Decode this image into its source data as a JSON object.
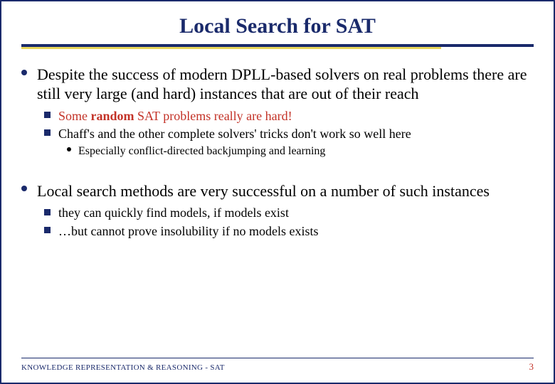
{
  "title": "Local Search for SAT",
  "colors": {
    "title": "#1a2a6b",
    "rule_primary": "#1a2a6b",
    "rule_accent": "#e8d65a",
    "body_text": "#000000",
    "emphasis": "#c33227",
    "footer_text": "#1a2a6b",
    "page_number": "#c33227",
    "background": "#ffffff"
  },
  "typography": {
    "title_fontsize": 30,
    "lvl1_fontsize": 22,
    "lvl2_fontsize": 18,
    "lvl3_fontsize": 16,
    "footer_fontsize": 11,
    "font_family": "Times New Roman"
  },
  "bullets": {
    "p1": "Despite the success of modern DPLL-based solvers on real problems there are still very large (and hard) instances that are out of their reach",
    "p1_s1_a": "Some ",
    "p1_s1_b": "random",
    "p1_s1_c": " SAT problems really are hard!",
    "p1_s2": "Chaff's and the other complete solvers' tricks don't work so well here",
    "p1_s2_i": "Especially conflict-directed backjumping and learning",
    "p2": "Local search methods are very successful on a number of such instances",
    "p2_s1": "they can quickly find models, if models exist",
    "p2_s2": "…but cannot prove insolubility if no models exists"
  },
  "footer": {
    "text": "KNOWLEDGE REPRESENTATION & REASONING - SAT",
    "page": "3"
  }
}
